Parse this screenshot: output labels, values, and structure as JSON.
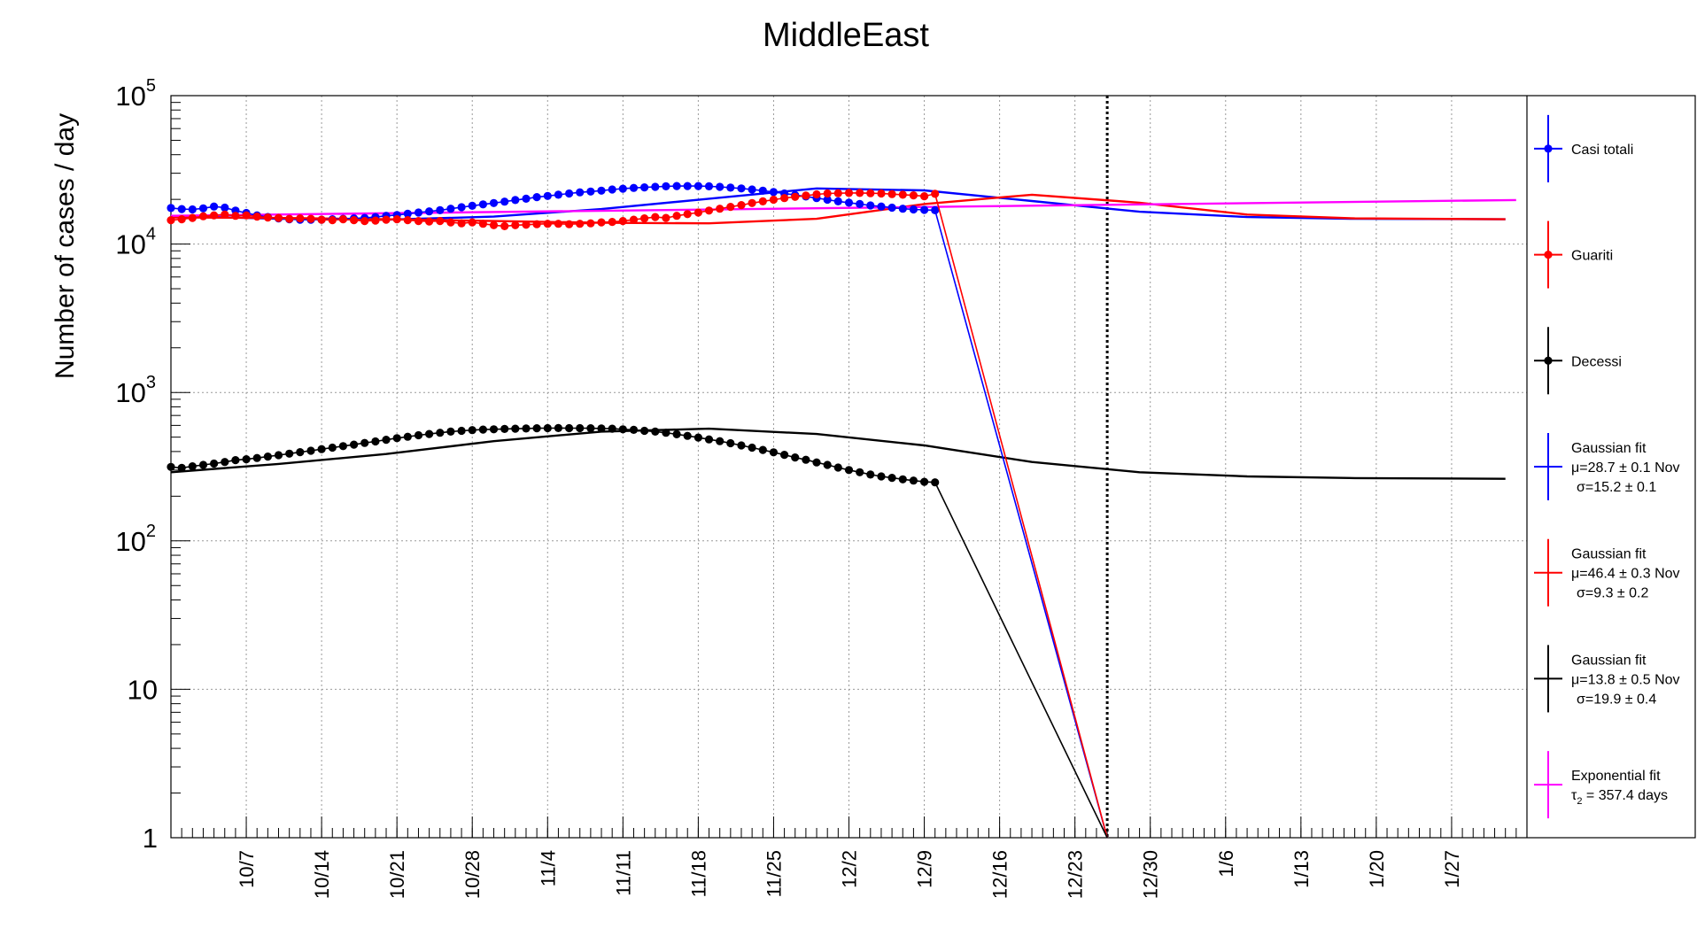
{
  "chart_data": {
    "type": "line",
    "title": "MiddleEast",
    "ylabel": "Number of cases / day",
    "xlabel": "",
    "y_scale": "log",
    "ylim": [
      1,
      100000
    ],
    "xlim": [
      "2020-09-30",
      "2021-02-03"
    ],
    "grid": true,
    "legend_position": "right",
    "x_ticks": [
      {
        "date": "2020-10-07",
        "label": "10/7"
      },
      {
        "date": "2020-10-14",
        "label": "10/14"
      },
      {
        "date": "2020-10-21",
        "label": "10/21"
      },
      {
        "date": "2020-10-28",
        "label": "10/28"
      },
      {
        "date": "2020-11-04",
        "label": "11/4"
      },
      {
        "date": "2020-11-11",
        "label": "11/11"
      },
      {
        "date": "2020-11-18",
        "label": "11/18"
      },
      {
        "date": "2020-11-25",
        "label": "11/25"
      },
      {
        "date": "2020-12-02",
        "label": "12/2"
      },
      {
        "date": "2020-12-09",
        "label": "12/9"
      },
      {
        "date": "2020-12-16",
        "label": "12/16"
      },
      {
        "date": "2020-12-23",
        "label": "12/23"
      },
      {
        "date": "2020-12-30",
        "label": "12/30"
      },
      {
        "date": "2021-01-06",
        "label": "1/6"
      },
      {
        "date": "2021-01-13",
        "label": "1/13"
      },
      {
        "date": "2021-01-20",
        "label": "1/20"
      },
      {
        "date": "2021-01-27",
        "label": "1/27"
      }
    ],
    "y_ticks": [
      {
        "value": 1,
        "label": "1"
      },
      {
        "value": 10,
        "label": "10"
      },
      {
        "value": 100,
        "label": "10",
        "exp": "2"
      },
      {
        "value": 1000,
        "label": "10",
        "exp": "3"
      },
      {
        "value": 10000,
        "label": "10",
        "exp": "4"
      },
      {
        "value": 100000,
        "label": "10",
        "exp": "5"
      }
    ],
    "vertical_marker": {
      "date": "2020-12-26"
    },
    "series": [
      {
        "name": "Casi totali",
        "kind": "data",
        "color": "#0000ff",
        "x_start": "2020-09-30",
        "values": [
          17500,
          17200,
          17100,
          17400,
          17900,
          17600,
          16800,
          16200,
          15600,
          15200,
          14900,
          14700,
          14600,
          14600,
          14600,
          14700,
          14800,
          14900,
          15000,
          15200,
          15500,
          15700,
          16000,
          16300,
          16600,
          16900,
          17300,
          17700,
          18100,
          18500,
          18900,
          19300,
          19800,
          20200,
          20700,
          21100,
          21500,
          21900,
          22300,
          22600,
          22900,
          23300,
          23600,
          23900,
          24100,
          24300,
          24500,
          24600,
          24600,
          24600,
          24500,
          24300,
          24000,
          23700,
          23300,
          22900,
          22400,
          21900,
          21400,
          20900,
          20400,
          19900,
          19400,
          19000,
          18600,
          18200,
          17900,
          17600,
          17300,
          17100,
          17000,
          16900
        ],
        "dropoff": {
          "date": "2020-12-26",
          "to": 1
        }
      },
      {
        "name": "Guariti",
        "kind": "data",
        "color": "#ff0000",
        "x_start": "2020-09-30",
        "values": [
          14500,
          14700,
          15000,
          15400,
          15600,
          15800,
          15500,
          15600,
          15300,
          15100,
          15000,
          14800,
          14900,
          14800,
          14600,
          14500,
          14700,
          14500,
          14300,
          14400,
          14600,
          14700,
          14500,
          14300,
          14200,
          14300,
          14000,
          13800,
          14000,
          13700,
          13400,
          13200,
          13400,
          13500,
          13600,
          13700,
          13700,
          13600,
          13700,
          13800,
          14000,
          14100,
          14300,
          14600,
          14900,
          15200,
          15000,
          15500,
          15900,
          16300,
          16800,
          17300,
          17800,
          18300,
          18900,
          19400,
          19900,
          20400,
          20800,
          21200,
          21600,
          21900,
          22000,
          22100,
          22100,
          22000,
          21900,
          21700,
          21500,
          21300,
          21000,
          21800
        ],
        "dropoff": {
          "date": "2020-12-26",
          "to": 1
        }
      },
      {
        "name": "Decessi",
        "kind": "data",
        "color": "#000000",
        "x_start": "2020-09-30",
        "values": [
          315,
          310,
          318,
          325,
          332,
          340,
          350,
          355,
          362,
          370,
          378,
          387,
          396,
          405,
          415,
          425,
          435,
          445,
          457,
          468,
          480,
          492,
          503,
          515,
          525,
          535,
          545,
          552,
          558,
          562,
          565,
          568,
          570,
          572,
          574,
          575,
          576,
          575,
          575,
          574,
          572,
          570,
          565,
          560,
          552,
          545,
          535,
          523,
          510,
          497,
          483,
          470,
          455,
          440,
          425,
          410,
          395,
          380,
          365,
          352,
          338,
          325,
          312,
          300,
          290,
          280,
          272,
          266,
          260,
          255,
          250,
          248
        ],
        "dropoff": {
          "date": "2020-12-26",
          "to": 1
        }
      },
      {
        "name": "Gaussian fit",
        "label_lines": [
          "Gaussian fit",
          "μ=28.7 ± 0.1 Nov",
          "σ=15.2 ± 0.1"
        ],
        "kind": "fit",
        "color": "#0000ff",
        "x": [
          "2020-09-30",
          "2020-10-10",
          "2020-10-20",
          "2020-10-30",
          "2020-11-09",
          "2020-11-19",
          "2020-11-29",
          "2020-12-09",
          "2020-12-19",
          "2020-12-29",
          "2021-01-08",
          "2021-01-18",
          "2021-02-01"
        ],
        "values": [
          15500,
          14800,
          14600,
          15300,
          17200,
          20200,
          23700,
          23000,
          19500,
          16500,
          15200,
          14800,
          14700
        ]
      },
      {
        "name": "Gaussian fit",
        "label_lines": [
          "Gaussian fit",
          "μ=46.4 ± 0.3 Nov",
          "σ=9.3 ± 0.2"
        ],
        "kind": "fit",
        "color": "#ff0000",
        "x": [
          "2020-09-30",
          "2020-10-10",
          "2020-10-20",
          "2020-10-30",
          "2020-11-09",
          "2020-11-19",
          "2020-11-29",
          "2020-12-09",
          "2020-12-19",
          "2020-12-29",
          "2021-01-08",
          "2021-01-18",
          "2021-02-01"
        ],
        "values": [
          15100,
          15000,
          14700,
          14300,
          13900,
          13800,
          14800,
          18600,
          21500,
          19000,
          15800,
          14900,
          14700
        ]
      },
      {
        "name": "Gaussian fit",
        "label_lines": [
          "Gaussian fit",
          "μ=13.8 ± 0.5 Nov",
          "σ=19.9 ± 0.4"
        ],
        "kind": "fit",
        "color": "#000000",
        "x": [
          "2020-09-30",
          "2020-10-10",
          "2020-10-20",
          "2020-10-30",
          "2020-11-09",
          "2020-11-19",
          "2020-11-29",
          "2020-12-09",
          "2020-12-19",
          "2020-12-29",
          "2021-01-08",
          "2021-01-18",
          "2021-02-01"
        ],
        "values": [
          290,
          330,
          385,
          470,
          545,
          570,
          525,
          440,
          340,
          290,
          272,
          265,
          262
        ]
      },
      {
        "name": "Exponential fit",
        "label_lines": [
          "Exponential fit",
          "τ2 = 357.4 days"
        ],
        "kind": "fit",
        "color": "#ff00ff",
        "x": [
          "2020-09-30",
          "2021-02-02"
        ],
        "values": [
          15500,
          19800
        ]
      }
    ]
  }
}
